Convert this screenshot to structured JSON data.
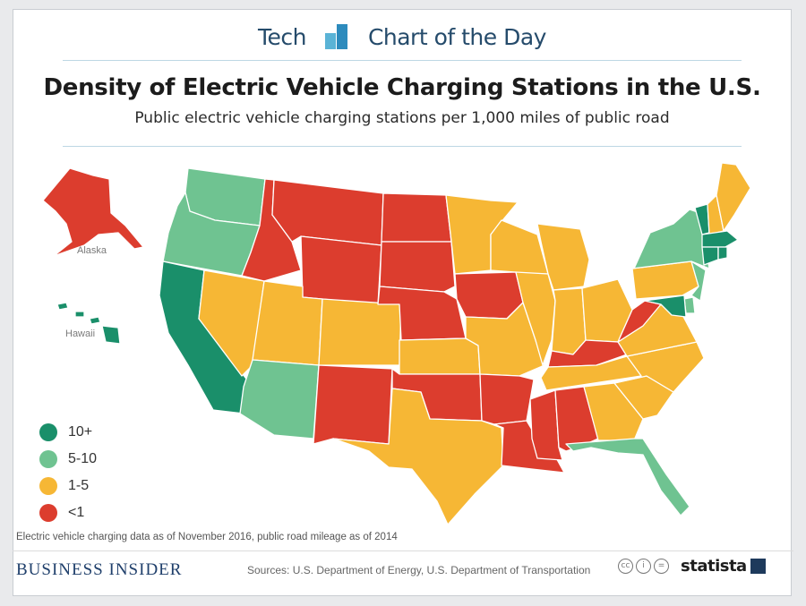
{
  "header": {
    "brand_left": "Tech",
    "brand_right": "Chart of the Day",
    "title": "Density of Electric Vehicle Charging Stations in the U.S.",
    "subtitle": "Public electric vehicle charging stations per 1,000 miles of public road"
  },
  "map": {
    "labels": {
      "alaska": "Alaska",
      "hawaii": "Hawaii"
    },
    "category_colors": {
      "10+": "#1a8f6a",
      "5-10": "#6fc391",
      "1-5": "#f6b735",
      "<1": "#dc3d2e"
    },
    "states": {
      "Washington": "5-10",
      "Oregon": "5-10",
      "California": "10+",
      "Nevada": "1-5",
      "Idaho": "<1",
      "Montana": "<1",
      "Wyoming": "<1",
      "Utah": "1-5",
      "Arizona": "5-10",
      "Colorado": "1-5",
      "New Mexico": "<1",
      "North Dakota": "<1",
      "South Dakota": "<1",
      "Nebraska": "<1",
      "Kansas": "1-5",
      "Oklahoma": "<1",
      "Texas": "1-5",
      "Minnesota": "1-5",
      "Iowa": "<1",
      "Missouri": "1-5",
      "Arkansas": "<1",
      "Louisiana": "<1",
      "Wisconsin": "1-5",
      "Illinois": "1-5",
      "Michigan": "1-5",
      "Indiana": "1-5",
      "Ohio": "1-5",
      "Kentucky": "<1",
      "Tennessee": "1-5",
      "Mississippi": "<1",
      "Alabama": "<1",
      "Georgia": "1-5",
      "Florida": "5-10",
      "South Carolina": "1-5",
      "North Carolina": "1-5",
      "Virginia": "1-5",
      "West Virginia": "<1",
      "Pennsylvania": "1-5",
      "New York": "5-10",
      "Maine": "1-5",
      "Vermont": "10+",
      "New Hampshire": "1-5",
      "Massachusetts": "10+",
      "Connecticut": "10+",
      "Rhode Island": "10+",
      "New Jersey": "5-10",
      "Maryland": "10+",
      "Delaware": "5-10",
      "Alaska": "<1",
      "Hawaii": "10+"
    }
  },
  "legend": [
    {
      "label": "10+",
      "color": "#1a8f6a"
    },
    {
      "label": "5-10",
      "color": "#6fc391"
    },
    {
      "label": "1-5",
      "color": "#f6b735"
    },
    {
      "label": "<1",
      "color": "#dc3d2e"
    }
  ],
  "footer": {
    "note": "Electric vehicle charging data as of November 2016, public road mileage as of 2014",
    "publisher": "BUSINESS INSIDER",
    "sources": "Sources: U.S. Department of Energy, U.S. Department of Transportation",
    "statista": "statista"
  }
}
